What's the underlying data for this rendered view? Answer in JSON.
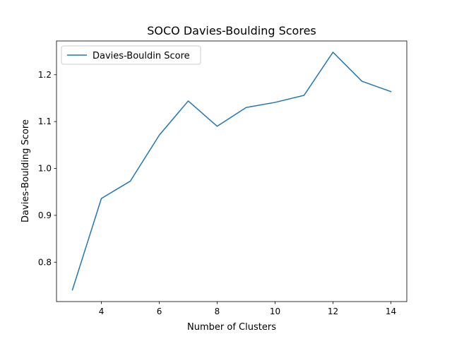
{
  "chart_data": {
    "type": "line",
    "title": "SOCO Davies-Boulding Scores",
    "xlabel": "Number of Clusters",
    "ylabel": "Davies-Boulding Score",
    "xlim": [
      2.45,
      14.55
    ],
    "ylim": [
      0.716,
      1.272
    ],
    "xticks": [
      4,
      6,
      8,
      10,
      12,
      14
    ],
    "yticks": [
      0.8,
      0.9,
      1.0,
      1.1,
      1.2
    ],
    "legend_position": "upper-left",
    "series": [
      {
        "name": "Davies-Bouldin Score",
        "color": "#1f77b4",
        "x": [
          3,
          4,
          5,
          6,
          7,
          8,
          9,
          10,
          11,
          12,
          13,
          14
        ],
        "y": [
          0.741,
          0.936,
          0.973,
          1.071,
          1.144,
          1.09,
          1.13,
          1.141,
          1.156,
          1.248,
          1.186,
          1.164
        ]
      }
    ]
  }
}
